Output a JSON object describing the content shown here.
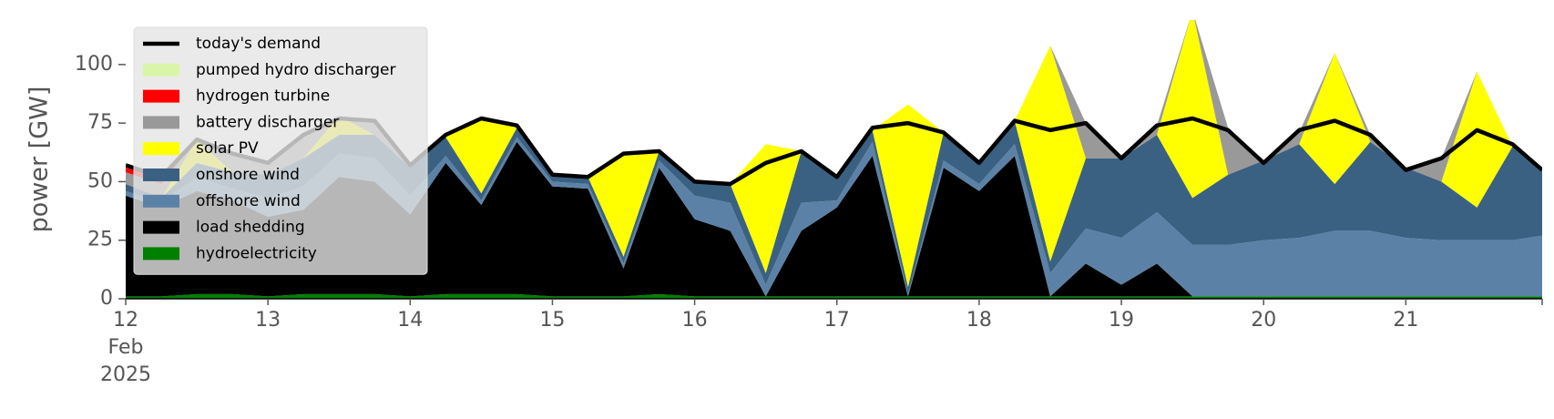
{
  "chart_data": {
    "type": "stacked-area",
    "ylabel": "power [GW]",
    "ylim": [
      0,
      119
    ],
    "yticks": [
      0,
      25,
      50,
      75,
      100
    ],
    "xlim": [
      "2025-02-12T00:00",
      "2025-02-21T23:00"
    ],
    "xticks": [
      {
        "value": "2025-02-12T00:00",
        "label": "12"
      },
      {
        "value": "2025-02-13T00:00",
        "label": "13"
      },
      {
        "value": "2025-02-14T00:00",
        "label": "14"
      },
      {
        "value": "2025-02-15T00:00",
        "label": "15"
      },
      {
        "value": "2025-02-16T00:00",
        "label": "16"
      },
      {
        "value": "2025-02-17T00:00",
        "label": "17"
      },
      {
        "value": "2025-02-18T00:00",
        "label": "18"
      },
      {
        "value": "2025-02-19T00:00",
        "label": "19"
      },
      {
        "value": "2025-02-20T00:00",
        "label": "20"
      },
      {
        "value": "2025-02-21T00:00",
        "label": "21"
      }
    ],
    "x_tick_sublabels": [
      "Feb",
      "2025"
    ],
    "legend": "upper left",
    "x": [
      "2025-02-12T00:00",
      "2025-02-12T06:00",
      "2025-02-12T12:00",
      "2025-02-12T18:00",
      "2025-02-13T00:00",
      "2025-02-13T06:00",
      "2025-02-13T12:00",
      "2025-02-13T18:00",
      "2025-02-14T00:00",
      "2025-02-14T06:00",
      "2025-02-14T12:00",
      "2025-02-14T18:00",
      "2025-02-15T00:00",
      "2025-02-15T06:00",
      "2025-02-15T12:00",
      "2025-02-15T18:00",
      "2025-02-16T00:00",
      "2025-02-16T06:00",
      "2025-02-16T12:00",
      "2025-02-16T18:00",
      "2025-02-17T00:00",
      "2025-02-17T06:00",
      "2025-02-17T12:00",
      "2025-02-17T18:00",
      "2025-02-18T00:00",
      "2025-02-18T06:00",
      "2025-02-18T12:00",
      "2025-02-18T18:00",
      "2025-02-19T00:00",
      "2025-02-19T06:00",
      "2025-02-19T12:00",
      "2025-02-19T18:00",
      "2025-02-20T00:00",
      "2025-02-20T06:00",
      "2025-02-20T12:00",
      "2025-02-20T18:00",
      "2025-02-21T00:00",
      "2025-02-21T06:00",
      "2025-02-21T12:00",
      "2025-02-21T18:00",
      "2025-02-21T23:00"
    ],
    "demand": {
      "name": "today's demand",
      "color": "#000000",
      "values": [
        57,
        52,
        68,
        62,
        58,
        70,
        77,
        76,
        57,
        70,
        77,
        74,
        53,
        52,
        62,
        63,
        50,
        49,
        58,
        63,
        52,
        73,
        75,
        71,
        58,
        76,
        72,
        75,
        60,
        74,
        77,
        72,
        58,
        72,
        76,
        70,
        55,
        60,
        72,
        66,
        55
      ]
    },
    "series": [
      {
        "name": "hydroelectricity",
        "color": "#008000",
        "values": [
          1,
          1,
          2,
          2,
          1,
          2,
          2,
          2,
          1,
          2,
          2,
          2,
          1,
          1,
          1,
          2,
          1,
          1,
          1,
          1,
          1,
          1,
          1,
          1,
          1,
          1,
          1,
          1,
          1,
          1,
          1,
          1,
          1,
          1,
          1,
          1,
          1,
          1,
          1,
          1,
          1
        ]
      },
      {
        "name": "load shedding",
        "color": "#000000",
        "values": [
          43,
          38,
          44,
          40,
          34,
          36,
          50,
          48,
          35,
          56,
          38,
          65,
          47,
          46,
          12,
          54,
          33,
          28,
          0,
          28,
          38,
          60,
          0,
          55,
          45,
          60,
          0,
          14,
          5,
          14,
          0,
          0,
          0,
          0,
          0,
          0,
          0,
          0,
          0,
          0,
          0
        ]
      },
      {
        "name": "offshore wind",
        "color": "#5b82a6",
        "values": [
          2,
          2,
          6,
          5,
          8,
          10,
          10,
          10,
          8,
          3,
          2,
          2,
          2,
          2,
          2,
          3,
          10,
          12,
          5,
          12,
          3,
          6,
          1,
          3,
          3,
          5,
          10,
          15,
          20,
          22,
          22,
          22,
          24,
          25,
          28,
          28,
          25,
          24,
          24,
          24,
          26
        ]
      },
      {
        "name": "onshore wind",
        "color": "#3b6182",
        "values": [
          3,
          2,
          6,
          7,
          10,
          12,
          8,
          10,
          12,
          8,
          3,
          4,
          3,
          3,
          3,
          4,
          6,
          8,
          5,
          22,
          10,
          5,
          3,
          12,
          10,
          10,
          5,
          30,
          34,
          33,
          20,
          30,
          34,
          40,
          20,
          38,
          30,
          25,
          14,
          40,
          28
        ]
      },
      {
        "name": "solar PV",
        "color": "#ffff00",
        "values": [
          0,
          0,
          10,
          0,
          0,
          0,
          8,
          0,
          0,
          0,
          32,
          0,
          0,
          0,
          44,
          0,
          0,
          0,
          55,
          0,
          0,
          0,
          78,
          0,
          0,
          0,
          92,
          0,
          0,
          0,
          80,
          0,
          0,
          0,
          56,
          0,
          0,
          0,
          58,
          0,
          0
        ]
      },
      {
        "name": "battery discharger",
        "color": "#999999",
        "values": [
          5,
          6,
          0,
          8,
          5,
          10,
          0,
          6,
          0,
          0,
          0,
          0,
          0,
          0,
          0,
          0,
          0,
          0,
          0,
          0,
          0,
          0,
          0,
          0,
          0,
          0,
          0,
          15,
          0,
          4,
          0,
          20,
          0,
          5,
          0,
          3,
          0,
          10,
          0,
          0,
          0
        ]
      },
      {
        "name": "hydrogen turbine",
        "color": "#ff0000",
        "values": [
          2,
          3,
          0,
          0,
          0,
          0,
          0,
          0,
          0,
          0,
          0,
          0,
          0,
          0,
          0,
          0,
          0,
          0,
          0,
          0,
          0,
          0,
          0,
          0,
          0,
          0,
          0,
          0,
          0,
          0,
          0,
          0,
          0,
          0,
          0,
          0,
          0,
          0,
          0,
          0,
          0
        ]
      },
      {
        "name": "pumped hydro discharger",
        "color": "#d9f5a7",
        "values": [
          1,
          1,
          0,
          0,
          0,
          0,
          0,
          0,
          0,
          0,
          0,
          0,
          0,
          0,
          0,
          0,
          0,
          0,
          0,
          0,
          0,
          0,
          0,
          0,
          0,
          0,
          0,
          0,
          0,
          0,
          0,
          0,
          0,
          0,
          0,
          0,
          0,
          0,
          0,
          0,
          0
        ]
      }
    ]
  }
}
